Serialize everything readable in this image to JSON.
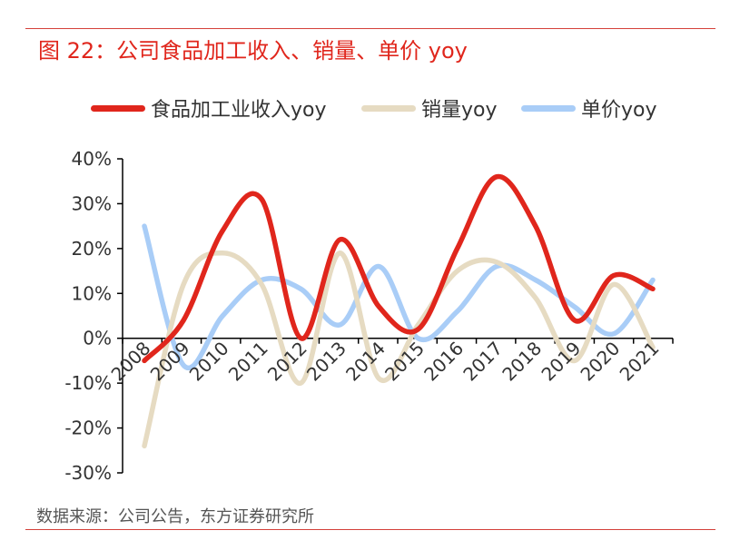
{
  "title": "图 22：公司食品加工收入、销量、单价 yoy",
  "source": "数据来源：公司公告，东方证券研究所",
  "chart_data": {
    "type": "line",
    "title": "图 22：公司食品加工收入、销量、单价 yoy",
    "categories": [
      "2008",
      "2009",
      "2010",
      "2011",
      "2012",
      "2013",
      "2014",
      "2015",
      "2016",
      "2017",
      "2018",
      "2019",
      "2020",
      "2021"
    ],
    "ylim": [
      -30,
      40
    ],
    "yticks": [
      40,
      30,
      20,
      10,
      0,
      -10,
      -20,
      -30
    ],
    "ytick_labels": [
      "40%",
      "30%",
      "20%",
      "10%",
      "0%",
      "-10%",
      "-20%",
      "-30%"
    ],
    "grid": false,
    "legend_position": "top",
    "series": [
      {
        "name": "食品加工业收入yoy",
        "color": "#e0261c",
        "values": [
          -5,
          4,
          24,
          31,
          0,
          22,
          7,
          2,
          20,
          36,
          25,
          4,
          14,
          11
        ]
      },
      {
        "name": "销量yoy",
        "color": "#e6dbc2",
        "values": [
          -24,
          12,
          19,
          12,
          -10,
          19,
          -9,
          3,
          15,
          17,
          9,
          -5,
          12,
          -2
        ]
      },
      {
        "name": "单价yoy",
        "color": "#a9cdf7",
        "values": [
          25,
          -6,
          5,
          13,
          11,
          3,
          16,
          0,
          6,
          16,
          13,
          7,
          1,
          13
        ]
      }
    ]
  }
}
